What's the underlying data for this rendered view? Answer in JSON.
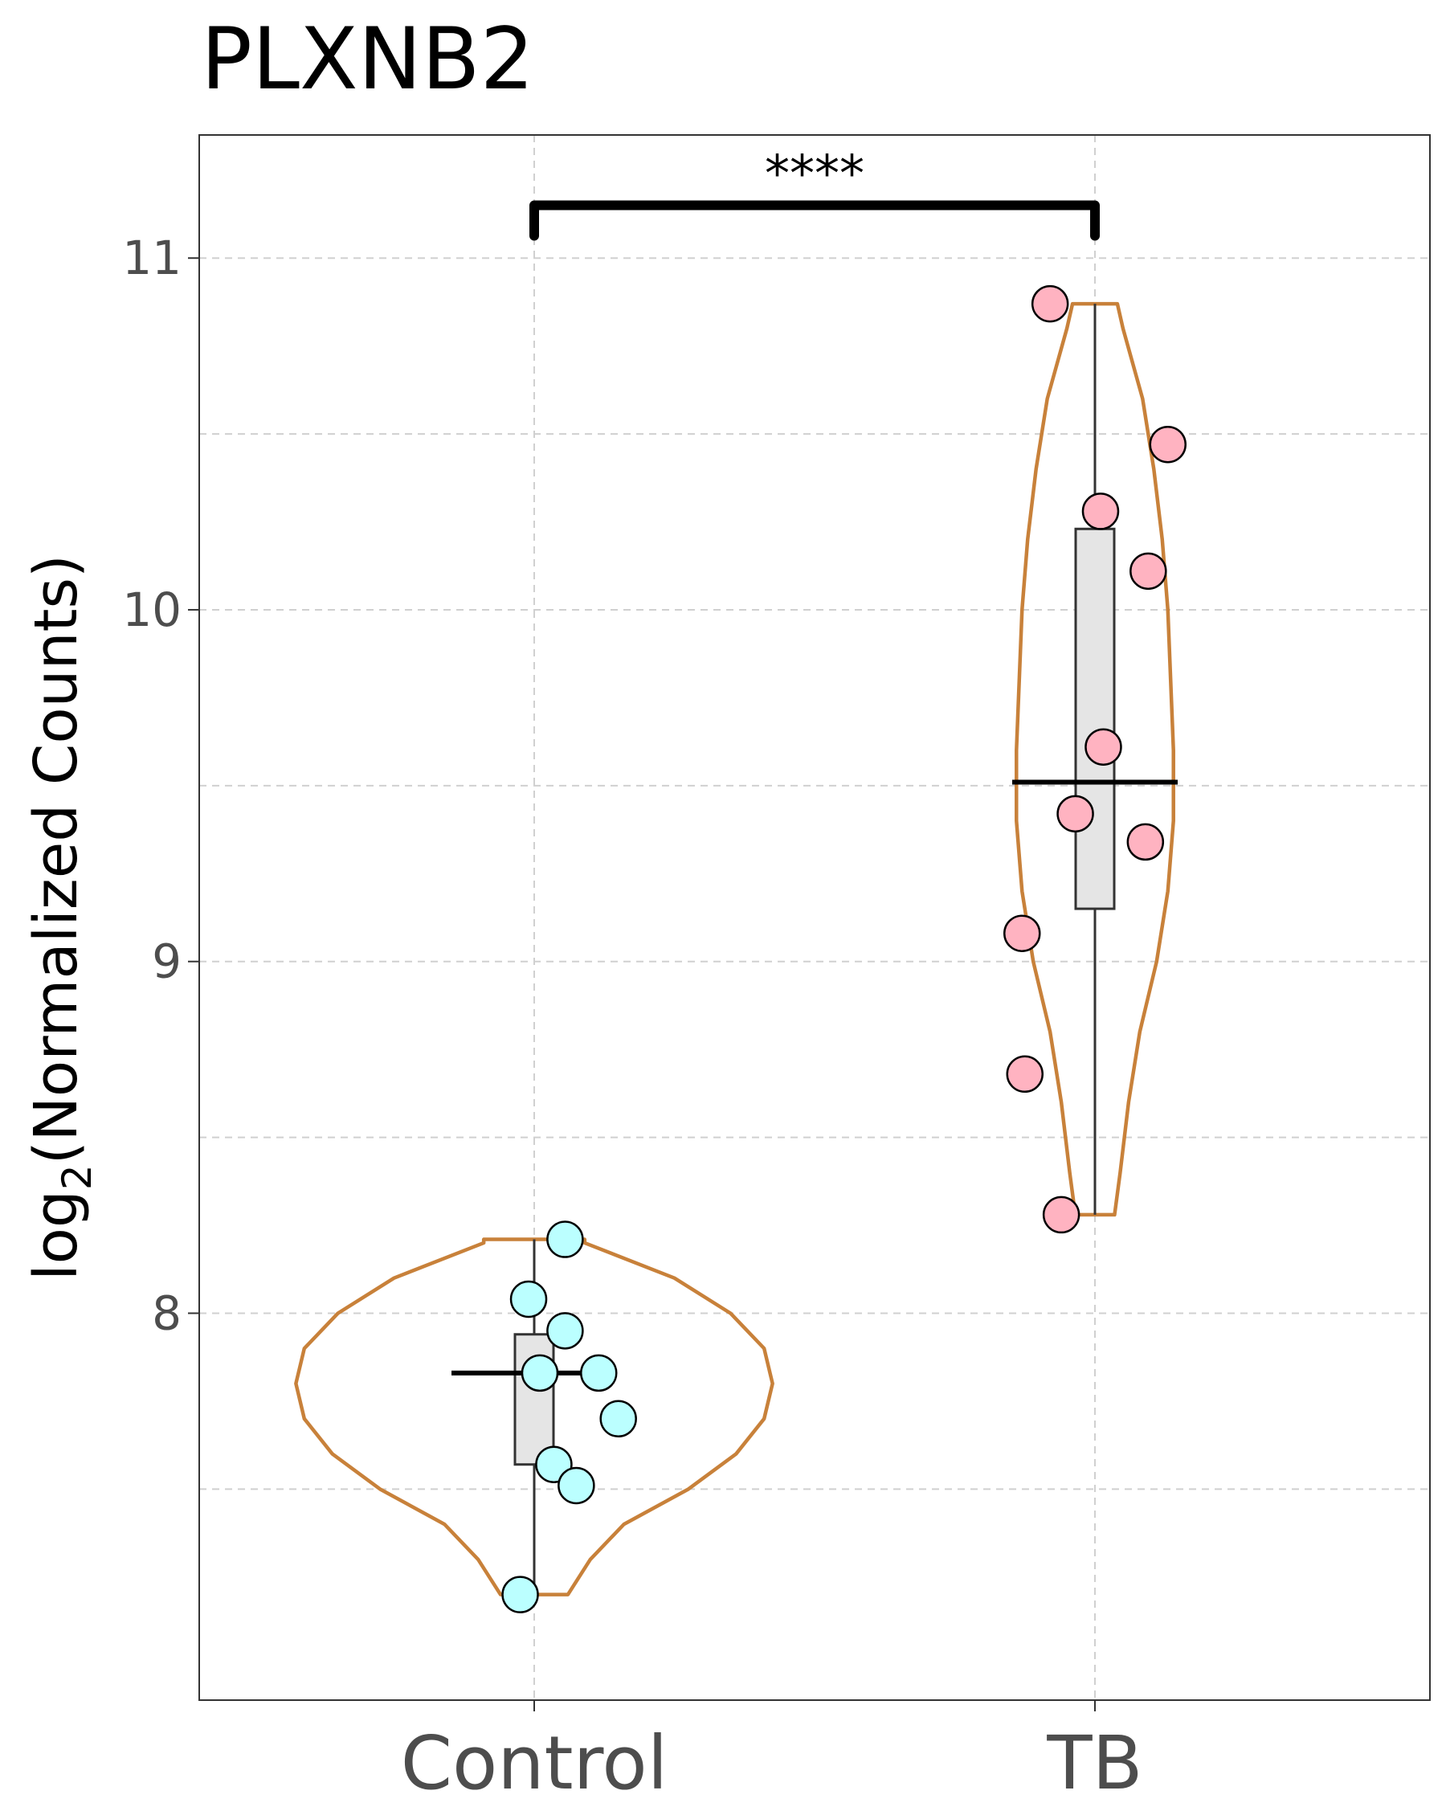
{
  "chart_data": {
    "type": "violin",
    "title": "PLXNB2",
    "ylabel_main": "log",
    "ylabel_sub": "2",
    "ylabel_rest": "(Normalized Counts)",
    "xlabel": "",
    "ylim": [
      6.9,
      11.35
    ],
    "yticks": [
      8,
      9,
      10,
      11
    ],
    "ytick_labels": [
      "8",
      "9",
      "10",
      "11"
    ],
    "minor_yticks": [
      7.5,
      8.5,
      9.5,
      10.5
    ],
    "grid": true,
    "categories": [
      "Control",
      "TB"
    ],
    "significance": {
      "label": "****",
      "between": [
        "Control",
        "TB"
      ],
      "y": 11.15
    },
    "groups": [
      {
        "name": "Control",
        "point_color": "#bbffff",
        "violin_color": "#c8813a",
        "median": 7.83,
        "q1": 7.57,
        "q3": 7.94,
        "whisker_low": 7.2,
        "whisker_high": 8.21,
        "points": [
          {
            "offset": 0.055,
            "y": 8.21
          },
          {
            "offset": -0.01,
            "y": 8.04
          },
          {
            "offset": 0.055,
            "y": 7.95
          },
          {
            "offset": 0.01,
            "y": 7.83
          },
          {
            "offset": 0.115,
            "y": 7.83
          },
          {
            "offset": 0.15,
            "y": 7.7
          },
          {
            "offset": 0.035,
            "y": 7.57
          },
          {
            "offset": 0.075,
            "y": 7.51
          },
          {
            "offset": -0.025,
            "y": 7.2
          }
        ],
        "violin_profile": [
          [
            7.2,
            0.12
          ],
          [
            7.3,
            0.2
          ],
          [
            7.4,
            0.32
          ],
          [
            7.5,
            0.55
          ],
          [
            7.6,
            0.72
          ],
          [
            7.7,
            0.82
          ],
          [
            7.8,
            0.85
          ],
          [
            7.9,
            0.82
          ],
          [
            8.0,
            0.7
          ],
          [
            8.1,
            0.5
          ],
          [
            8.2,
            0.18
          ],
          [
            8.21,
            0.18
          ]
        ]
      },
      {
        "name": "TB",
        "point_color": "#ffb3c1",
        "violin_color": "#c8813a",
        "median": 9.51,
        "q1": 9.15,
        "q3": 10.23,
        "whisker_low": 8.28,
        "whisker_high": 10.87,
        "points": [
          {
            "offset": -0.08,
            "y": 10.87
          },
          {
            "offset": 0.13,
            "y": 10.47
          },
          {
            "offset": 0.01,
            "y": 10.28
          },
          {
            "offset": 0.095,
            "y": 10.11
          },
          {
            "offset": 0.015,
            "y": 9.61
          },
          {
            "offset": -0.035,
            "y": 9.42
          },
          {
            "offset": 0.09,
            "y": 9.34
          },
          {
            "offset": -0.13,
            "y": 9.08
          },
          {
            "offset": -0.125,
            "y": 8.68
          },
          {
            "offset": -0.06,
            "y": 8.28
          }
        ],
        "violin_profile": [
          [
            8.28,
            0.07
          ],
          [
            8.4,
            0.09
          ],
          [
            8.6,
            0.12
          ],
          [
            8.8,
            0.16
          ],
          [
            9.0,
            0.22
          ],
          [
            9.2,
            0.26
          ],
          [
            9.4,
            0.28
          ],
          [
            9.6,
            0.28
          ],
          [
            9.8,
            0.27
          ],
          [
            10.0,
            0.26
          ],
          [
            10.2,
            0.24
          ],
          [
            10.4,
            0.21
          ],
          [
            10.6,
            0.17
          ],
          [
            10.8,
            0.1
          ],
          [
            10.87,
            0.08
          ]
        ]
      }
    ]
  }
}
